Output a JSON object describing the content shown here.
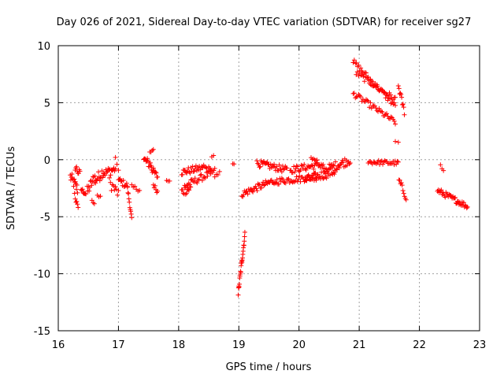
{
  "chart_data": {
    "type": "scatter",
    "title": "Day 026 of 2021, Sidereal Day-to-day VTEC variation (SDTVAR) for receiver sg27",
    "xlabel": "GPS time / hours",
    "ylabel": "SDTVAR / TECUs",
    "xlim": [
      16,
      23
    ],
    "ylim": [
      -15,
      10
    ],
    "xticks": [
      16,
      17,
      18,
      19,
      20,
      21,
      22,
      23
    ],
    "yticks": [
      -15,
      -10,
      -5,
      0,
      5,
      10
    ],
    "grid": true,
    "marker": "+",
    "color": "#ff0000",
    "segments": [
      {
        "x": [
          16.2,
          16.32
        ],
        "y": [
          -1.5,
          -2.6
        ],
        "n": 14,
        "jitter": 0.5
      },
      {
        "x": [
          16.27,
          16.33
        ],
        "y": [
          -3.0,
          -4.4
        ],
        "n": 6,
        "jitter": 0.3
      },
      {
        "x": [
          16.28,
          16.36
        ],
        "y": [
          -0.6,
          -1.3
        ],
        "n": 8,
        "jitter": 0.4
      },
      {
        "x": [
          16.38,
          16.46
        ],
        "y": [
          -2.6,
          -3.0
        ],
        "n": 8,
        "jitter": 0.2
      },
      {
        "x": [
          16.48,
          16.62
        ],
        "y": [
          -2.8,
          -1.4
        ],
        "n": 14,
        "jitter": 0.5
      },
      {
        "x": [
          16.56,
          16.6
        ],
        "y": [
          -3.6,
          -3.9
        ],
        "n": 3,
        "jitter": 0.1
      },
      {
        "x": [
          16.62,
          16.75
        ],
        "y": [
          -1.8,
          -1.0
        ],
        "n": 12,
        "jitter": 0.5
      },
      {
        "x": [
          16.75,
          16.95
        ],
        "y": [
          -1.2,
          -0.8
        ],
        "n": 16,
        "jitter": 0.4
      },
      {
        "x": [
          16.65,
          16.7
        ],
        "y": [
          -3.2,
          -3.2
        ],
        "n": 3,
        "jitter": 0.1
      },
      {
        "x": [
          16.85,
          17.0
        ],
        "y": [
          -2.0,
          -3.0
        ],
        "n": 10,
        "jitter": 0.5
      },
      {
        "x": [
          16.95,
          17.0
        ],
        "y": [
          0.0,
          -0.8
        ],
        "n": 3,
        "jitter": 0.2
      },
      {
        "x": [
          17.0,
          17.15
        ],
        "y": [
          -1.8,
          -2.3
        ],
        "n": 12,
        "jitter": 0.3
      },
      {
        "x": [
          17.15,
          17.22
        ],
        "y": [
          -2.5,
          -5.2
        ],
        "n": 10,
        "jitter": 0.2
      },
      {
        "x": [
          17.22,
          17.35
        ],
        "y": [
          -2.4,
          -2.6
        ],
        "n": 6,
        "jitter": 0.2
      },
      {
        "x": [
          17.42,
          17.55
        ],
        "y": [
          0.0,
          -0.5
        ],
        "n": 14,
        "jitter": 0.4
      },
      {
        "x": [
          17.52,
          17.58
        ],
        "y": [
          0.6,
          1.0
        ],
        "n": 4,
        "jitter": 0.2
      },
      {
        "x": [
          17.55,
          17.65
        ],
        "y": [
          -0.8,
          -1.5
        ],
        "n": 10,
        "jitter": 0.3
      },
      {
        "x": [
          17.58,
          17.65
        ],
        "y": [
          -2.2,
          -2.8
        ],
        "n": 6,
        "jitter": 0.2
      },
      {
        "x": [
          17.8,
          17.85
        ],
        "y": [
          -1.8,
          -1.8
        ],
        "n": 3,
        "jitter": 0.1
      },
      {
        "x": [
          18.05,
          18.4
        ],
        "y": [
          -1.1,
          -0.7
        ],
        "n": 26,
        "jitter": 0.3
      },
      {
        "x": [
          18.05,
          18.2
        ],
        "y": [
          -2.8,
          -2.5
        ],
        "n": 12,
        "jitter": 0.4
      },
      {
        "x": [
          18.1,
          18.6
        ],
        "y": [
          -2.3,
          -1.0
        ],
        "n": 30,
        "jitter": 0.3
      },
      {
        "x": [
          18.4,
          18.55
        ],
        "y": [
          -0.6,
          -1.0
        ],
        "n": 10,
        "jitter": 0.3
      },
      {
        "x": [
          18.55,
          18.58
        ],
        "y": [
          0.3,
          0.3
        ],
        "n": 2,
        "jitter": 0.1
      },
      {
        "x": [
          18.6,
          18.68
        ],
        "y": [
          -1.6,
          -1.2
        ],
        "n": 4,
        "jitter": 0.2
      },
      {
        "x": [
          18.9,
          18.92
        ],
        "y": [
          -0.3,
          -0.3
        ],
        "n": 2,
        "jitter": 0.1
      },
      {
        "x": [
          18.99,
          19.1
        ],
        "y": [
          -11.7,
          -6.6
        ],
        "n": 24,
        "jitter": 0.3
      },
      {
        "x": [
          19.05,
          19.6
        ],
        "y": [
          -3.0,
          -1.8
        ],
        "n": 40,
        "jitter": 0.3
      },
      {
        "x": [
          19.3,
          19.8
        ],
        "y": [
          -0.3,
          -0.9
        ],
        "n": 36,
        "jitter": 0.3
      },
      {
        "x": [
          19.6,
          20.3
        ],
        "y": [
          -1.9,
          -1.5
        ],
        "n": 44,
        "jitter": 0.3
      },
      {
        "x": [
          19.85,
          20.4
        ],
        "y": [
          -0.9,
          -0.4
        ],
        "n": 36,
        "jitter": 0.3
      },
      {
        "x": [
          20.1,
          20.6
        ],
        "y": [
          -1.8,
          -1.0
        ],
        "n": 36,
        "jitter": 0.4
      },
      {
        "x": [
          20.2,
          20.3
        ],
        "y": [
          0.1,
          -0.2
        ],
        "n": 6,
        "jitter": 0.2
      },
      {
        "x": [
          20.4,
          20.85
        ],
        "y": [
          -1.0,
          0.0
        ],
        "n": 36,
        "jitter": 0.4
      },
      {
        "x": [
          20.9,
          21.6
        ],
        "y": [
          8.6,
          4.7
        ],
        "n": 40,
        "jitter": 0.25
      },
      {
        "x": [
          20.95,
          21.6
        ],
        "y": [
          7.6,
          5.3
        ],
        "n": 34,
        "jitter": 0.25
      },
      {
        "x": [
          20.9,
          21.6
        ],
        "y": [
          5.8,
          3.3
        ],
        "n": 40,
        "jitter": 0.25
      },
      {
        "x": [
          21.6,
          21.65
        ],
        "y": [
          1.5,
          1.5
        ],
        "n": 2,
        "jitter": 0.1
      },
      {
        "x": [
          21.65,
          21.75
        ],
        "y": [
          6.5,
          4.2
        ],
        "n": 10,
        "jitter": 0.3
      },
      {
        "x": [
          21.15,
          21.65
        ],
        "y": [
          -0.2,
          -0.3
        ],
        "n": 30,
        "jitter": 0.2
      },
      {
        "x": [
          21.66,
          21.78
        ],
        "y": [
          -1.8,
          -3.3
        ],
        "n": 10,
        "jitter": 0.3
      },
      {
        "x": [
          22.35,
          22.4
        ],
        "y": [
          -0.5,
          -1.0
        ],
        "n": 3,
        "jitter": 0.1
      },
      {
        "x": [
          22.3,
          22.8
        ],
        "y": [
          -2.7,
          -4.1
        ],
        "n": 40,
        "jitter": 0.25
      }
    ]
  }
}
